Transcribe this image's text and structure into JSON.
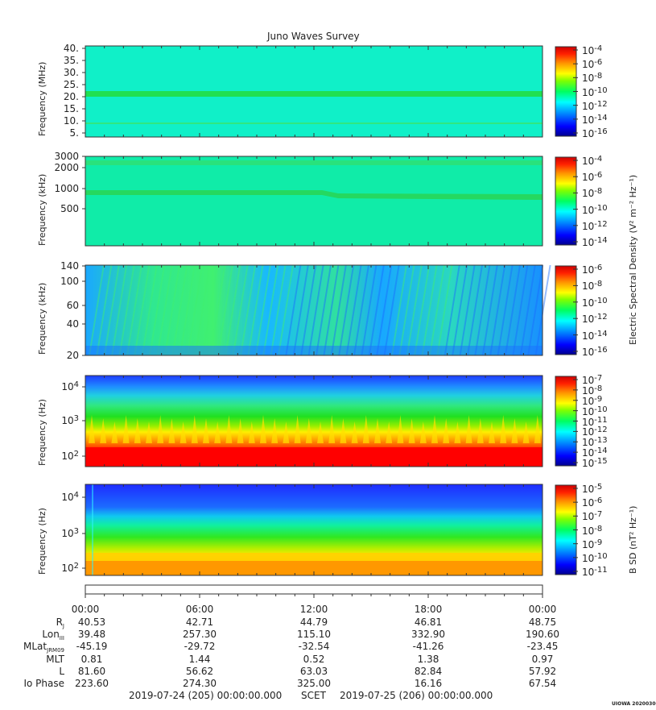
{
  "title": "Juno Waves Survey",
  "panels": [
    {
      "id": "p1",
      "ylabel": "Frequency (MHz)",
      "yticks": [
        "40.",
        "35.",
        "30.",
        "25.",
        "20.",
        "15.",
        "10.",
        "5."
      ],
      "cbar_ticks": [
        {
          "base": "10",
          "exp": "-4"
        },
        {
          "base": "10",
          "exp": "-6"
        },
        {
          "base": "10",
          "exp": "-8"
        },
        {
          "base": "10",
          "exp": "-10"
        },
        {
          "base": "10",
          "exp": "-12"
        },
        {
          "base": "10",
          "exp": "-14"
        },
        {
          "base": "10",
          "exp": "-16"
        }
      ]
    },
    {
      "id": "p2",
      "ylabel": "Frequency (kHz)",
      "yticks": [
        "3000",
        "2000",
        "1000",
        "500"
      ],
      "cbar_ticks": [
        {
          "base": "10",
          "exp": "-4"
        },
        {
          "base": "10",
          "exp": "-6"
        },
        {
          "base": "10",
          "exp": "-8"
        },
        {
          "base": "10",
          "exp": "-10"
        },
        {
          "base": "10",
          "exp": "-12"
        },
        {
          "base": "10",
          "exp": "-14"
        }
      ]
    },
    {
      "id": "p3",
      "ylabel": "Frequency (kHz)",
      "yticks": [
        "140",
        "100",
        "60",
        "40",
        "20"
      ],
      "cbar_ticks": [
        {
          "base": "10",
          "exp": "-6"
        },
        {
          "base": "10",
          "exp": "-8"
        },
        {
          "base": "10",
          "exp": "-10"
        },
        {
          "base": "10",
          "exp": "-12"
        },
        {
          "base": "10",
          "exp": "-14"
        },
        {
          "base": "10",
          "exp": "-16"
        }
      ]
    },
    {
      "id": "p4",
      "ylabel": "Frequency (Hz)",
      "yticks": [
        {
          "base": "10",
          "exp": "4"
        },
        {
          "base": "10",
          "exp": "3"
        },
        {
          "base": "10",
          "exp": "2"
        }
      ],
      "cbar_ticks": [
        {
          "base": "10",
          "exp": "-7"
        },
        {
          "base": "10",
          "exp": "-8"
        },
        {
          "base": "10",
          "exp": "-9"
        },
        {
          "base": "10",
          "exp": "-10"
        },
        {
          "base": "10",
          "exp": "-11"
        },
        {
          "base": "10",
          "exp": "-12"
        },
        {
          "base": "10",
          "exp": "-13"
        },
        {
          "base": "10",
          "exp": "-14"
        },
        {
          "base": "10",
          "exp": "-15"
        }
      ]
    },
    {
      "id": "p5",
      "ylabel": "Frequency (Hz)",
      "yticks": [
        {
          "base": "10",
          "exp": "4"
        },
        {
          "base": "10",
          "exp": "3"
        },
        {
          "base": "10",
          "exp": "2"
        }
      ],
      "cbar_ticks": [
        {
          "base": "10",
          "exp": "-5"
        },
        {
          "base": "10",
          "exp": "-6"
        },
        {
          "base": "10",
          "exp": "-7"
        },
        {
          "base": "10",
          "exp": "-8"
        },
        {
          "base": "10",
          "exp": "-9"
        },
        {
          "base": "10",
          "exp": "-10"
        },
        {
          "base": "10",
          "exp": "-11"
        }
      ]
    }
  ],
  "cbar_label_e": "Electric Spectral Density (V² m⁻² Hz⁻¹)",
  "cbar_label_b": "B SD (nT² Hz⁻¹)",
  "time_ticks": [
    "00:00",
    "06:00",
    "12:00",
    "18:00",
    "00:00"
  ],
  "ephemeris": [
    {
      "label": "R",
      "sub": "J",
      "values": [
        "40.53",
        "42.71",
        "44.79",
        "46.81",
        "48.75"
      ]
    },
    {
      "label": "Lon",
      "sub": "III",
      "values": [
        "39.48",
        "257.30",
        "115.10",
        "332.90",
        "190.60"
      ]
    },
    {
      "label": "MLat",
      "sub": "JRM09",
      "values": [
        "-45.19",
        "-29.72",
        "-32.54",
        "-41.26",
        "-23.45"
      ]
    },
    {
      "label": "MLT",
      "sub": "",
      "values": [
        "0.81",
        "1.44",
        "0.52",
        "1.38",
        "0.97"
      ]
    },
    {
      "label": "L",
      "sub": "",
      "values": [
        "81.60",
        "56.62",
        "63.03",
        "82.84",
        "57.92"
      ]
    },
    {
      "label": "Io Phase",
      "sub": "",
      "values": [
        "223.60",
        "274.30",
        "325.00",
        "16.16",
        "67.54"
      ]
    }
  ],
  "footer": {
    "start": "2019-07-24 (205) 00:00:00.000",
    "mid": "SCET",
    "end": "2019-07-25 (206) 00:00:00.000"
  },
  "stamp": "UIOWA 20200306",
  "chart_data": {
    "type": "heatmap",
    "title": "Juno Waves Survey",
    "xlabel": "SCET",
    "x_range": [
      "2019-07-24T00:00",
      "2019-07-25T00:00"
    ],
    "panels": [
      {
        "ylabel": "Frequency (MHz)",
        "ylim": [
          3,
          42
        ],
        "scale": "linear",
        "clim_exp": [
          -17,
          -4
        ],
        "colorbar": "Electric Spectral Density"
      },
      {
        "ylabel": "Frequency (kHz)",
        "ylim": [
          140,
          3000
        ],
        "scale": "log",
        "clim_exp": [
          -15,
          -3
        ],
        "colorbar": "Electric Spectral Density"
      },
      {
        "ylabel": "Frequency (kHz)",
        "ylim": [
          20,
          140
        ],
        "scale": "log",
        "clim_exp": [
          -17,
          -6
        ],
        "colorbar": "Electric Spectral Density"
      },
      {
        "ylabel": "Frequency (Hz)",
        "ylim": [
          50,
          20000
        ],
        "scale": "log",
        "clim_exp": [
          -15,
          -7
        ],
        "colorbar": "Electric Spectral Density"
      },
      {
        "ylabel": "Frequency (Hz)",
        "ylim": [
          50,
          20000
        ],
        "scale": "log",
        "clim_exp": [
          -11,
          -4
        ],
        "colorbar": "B SD"
      }
    ]
  }
}
